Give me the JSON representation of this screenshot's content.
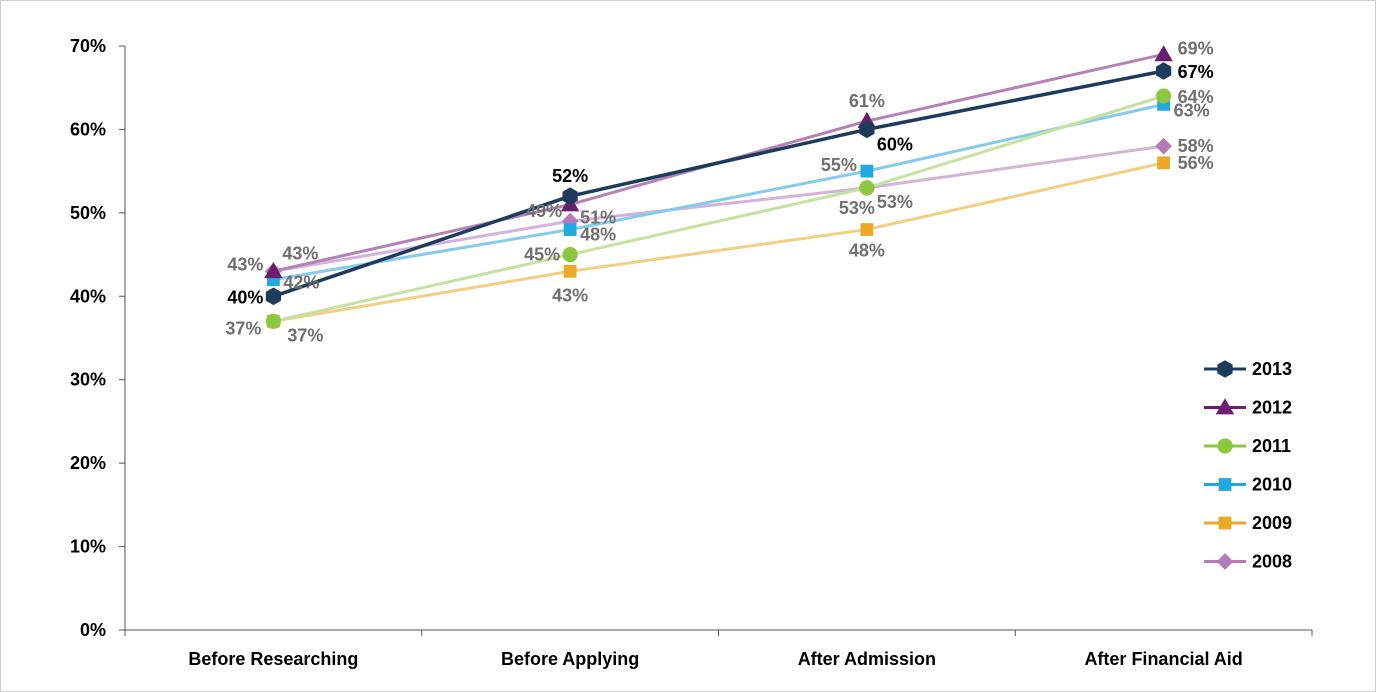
{
  "chart_data": {
    "type": "line",
    "title": "",
    "xlabel": "",
    "ylabel": "",
    "categories": [
      "Before Researching",
      "Before Applying",
      "After Admission",
      "After Financial Aid"
    ],
    "y_ticks": [
      "0%",
      "10%",
      "20%",
      "30%",
      "40%",
      "50%",
      "60%",
      "70%"
    ],
    "ylim": [
      0,
      70
    ],
    "grid": false,
    "legend_position": "right",
    "series": [
      {
        "name": "2008",
        "values": [
          43,
          49,
          53,
          58
        ],
        "labels": [
          "43%",
          "49%",
          "53%",
          "58%"
        ],
        "color": "#d3b3dc",
        "marker_color": "#b57ab8",
        "marker": "diamond",
        "label_color": "#707070"
      },
      {
        "name": "2009",
        "values": [
          37,
          43,
          48,
          56
        ],
        "labels": [
          "37%",
          "43%",
          "48%",
          "56%"
        ],
        "color": "#f2d083",
        "marker_color": "#eaa927",
        "marker": "square",
        "label_color": "#707070"
      },
      {
        "name": "2010",
        "values": [
          42,
          48,
          55,
          63
        ],
        "labels": [
          "42%",
          "48%",
          "55%",
          "63%"
        ],
        "color": "#86cbec",
        "marker_color": "#21a8df",
        "marker": "square",
        "label_color": "#707070"
      },
      {
        "name": "2011",
        "values": [
          37,
          45,
          53,
          64
        ],
        "labels": [
          "37%",
          "45%",
          "53%",
          "64%"
        ],
        "color": "#c6e2a1",
        "marker_color": "#8dc63f",
        "marker": "circle",
        "label_color": "#707070"
      },
      {
        "name": "2012",
        "values": [
          43,
          51,
          61,
          69
        ],
        "labels": [
          "43%",
          "51%",
          "61%",
          "69%"
        ],
        "color": "#b483b6",
        "marker_color": "#6a1f6e",
        "marker": "triangle",
        "label_color": "#707070"
      },
      {
        "name": "2013",
        "values": [
          40,
          52,
          60,
          67
        ],
        "labels": [
          "40%",
          "52%",
          "60%",
          "67%"
        ],
        "color": "#1f3b5c",
        "marker_color": "#1f3b5c",
        "marker": "hexagon",
        "label_color": "#000000"
      }
    ],
    "legend_order": [
      "2013",
      "2012",
      "2011",
      "2010",
      "2009",
      "2008"
    ]
  }
}
